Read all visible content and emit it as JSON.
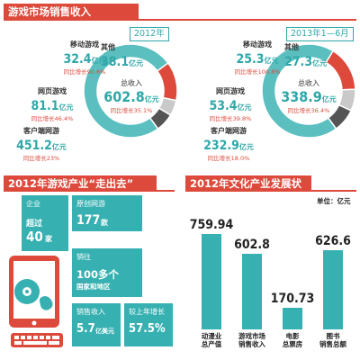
{
  "section1": {
    "title": "游戏市场销售收入",
    "chart_data": [
      {
        "type": "pie",
        "period": "2012年",
        "center": {
          "label": "总收入",
          "value": "602.8",
          "unit": "亿元",
          "growth": "同比增长35.1%"
        },
        "slices": [
          {
            "name": "客户端网游",
            "value": 451.2,
            "display": "451.2",
            "unit": "亿元",
            "growth": "同比增长23%",
            "color": "#5bbfc0"
          },
          {
            "name": "网页游戏",
            "value": 81.1,
            "display": "81.1",
            "unit": "亿元",
            "growth": "同比增长46.4%",
            "color": "#dd4a3c"
          },
          {
            "name": "移动游戏",
            "value": 32.4,
            "display": "32.4",
            "unit": "亿元",
            "growth": "同比增长90.6%",
            "color": "#c9c9c9"
          },
          {
            "name": "其他",
            "value": 38.1,
            "display": "38.1",
            "unit": "亿元",
            "growth": "",
            "color": "#555555"
          }
        ]
      },
      {
        "type": "pie",
        "period": "2013年1—6月",
        "center": {
          "label": "总收入",
          "value": "338.9",
          "unit": "亿元",
          "growth": "同比增长36.4%"
        },
        "slices": [
          {
            "name": "客户端网游",
            "value": 232.9,
            "display": "232.9",
            "unit": "亿元",
            "growth": "同比增长18.0%",
            "color": "#5bbfc0"
          },
          {
            "name": "网页游戏",
            "value": 53.4,
            "display": "53.4",
            "unit": "亿元",
            "growth": "同比增长39.8%",
            "color": "#dd4a3c"
          },
          {
            "name": "移动游戏",
            "value": 25.3,
            "display": "25.3",
            "unit": "亿元",
            "growth": "同比增长100.8%",
            "color": "#c9c9c9"
          },
          {
            "name": "其他",
            "value": 27.3,
            "display": "27.3",
            "unit": "亿元",
            "growth": "",
            "color": "#555555"
          }
        ]
      }
    ]
  },
  "section2": {
    "title": "2012年游戏产业“走出去”",
    "tiles": {
      "enterprise": {
        "label": "企业",
        "value_prefix": "超过",
        "value": "40",
        "unit": "家"
      },
      "original": {
        "label": "原创网游",
        "value": "177",
        "unit": "款"
      },
      "sales_area": {
        "label": "销往",
        "value": "100多个",
        "unit": "国家和地区"
      },
      "sales_revenue": {
        "label": "销售收入",
        "value": "5.7",
        "unit": "亿美元"
      },
      "growth": {
        "label": "较上年增长",
        "value": "57.5%"
      }
    }
  },
  "section3": {
    "title": "2012年文化产业发展状况",
    "unit_note": "单位：亿元",
    "chart_data": {
      "type": "bar",
      "categories": [
        "动漫业\n总产值",
        "游戏市场\n销售收入",
        "电影\n总票房",
        "图书\n销售总额"
      ],
      "values": [
        759.94,
        602.8,
        170.73,
        626.6
      ],
      "value_labels": [
        "759.94",
        "602.8",
        "170.73",
        "626.6"
      ],
      "color": "#36b0b1",
      "ylim": [
        0,
        800
      ]
    }
  }
}
